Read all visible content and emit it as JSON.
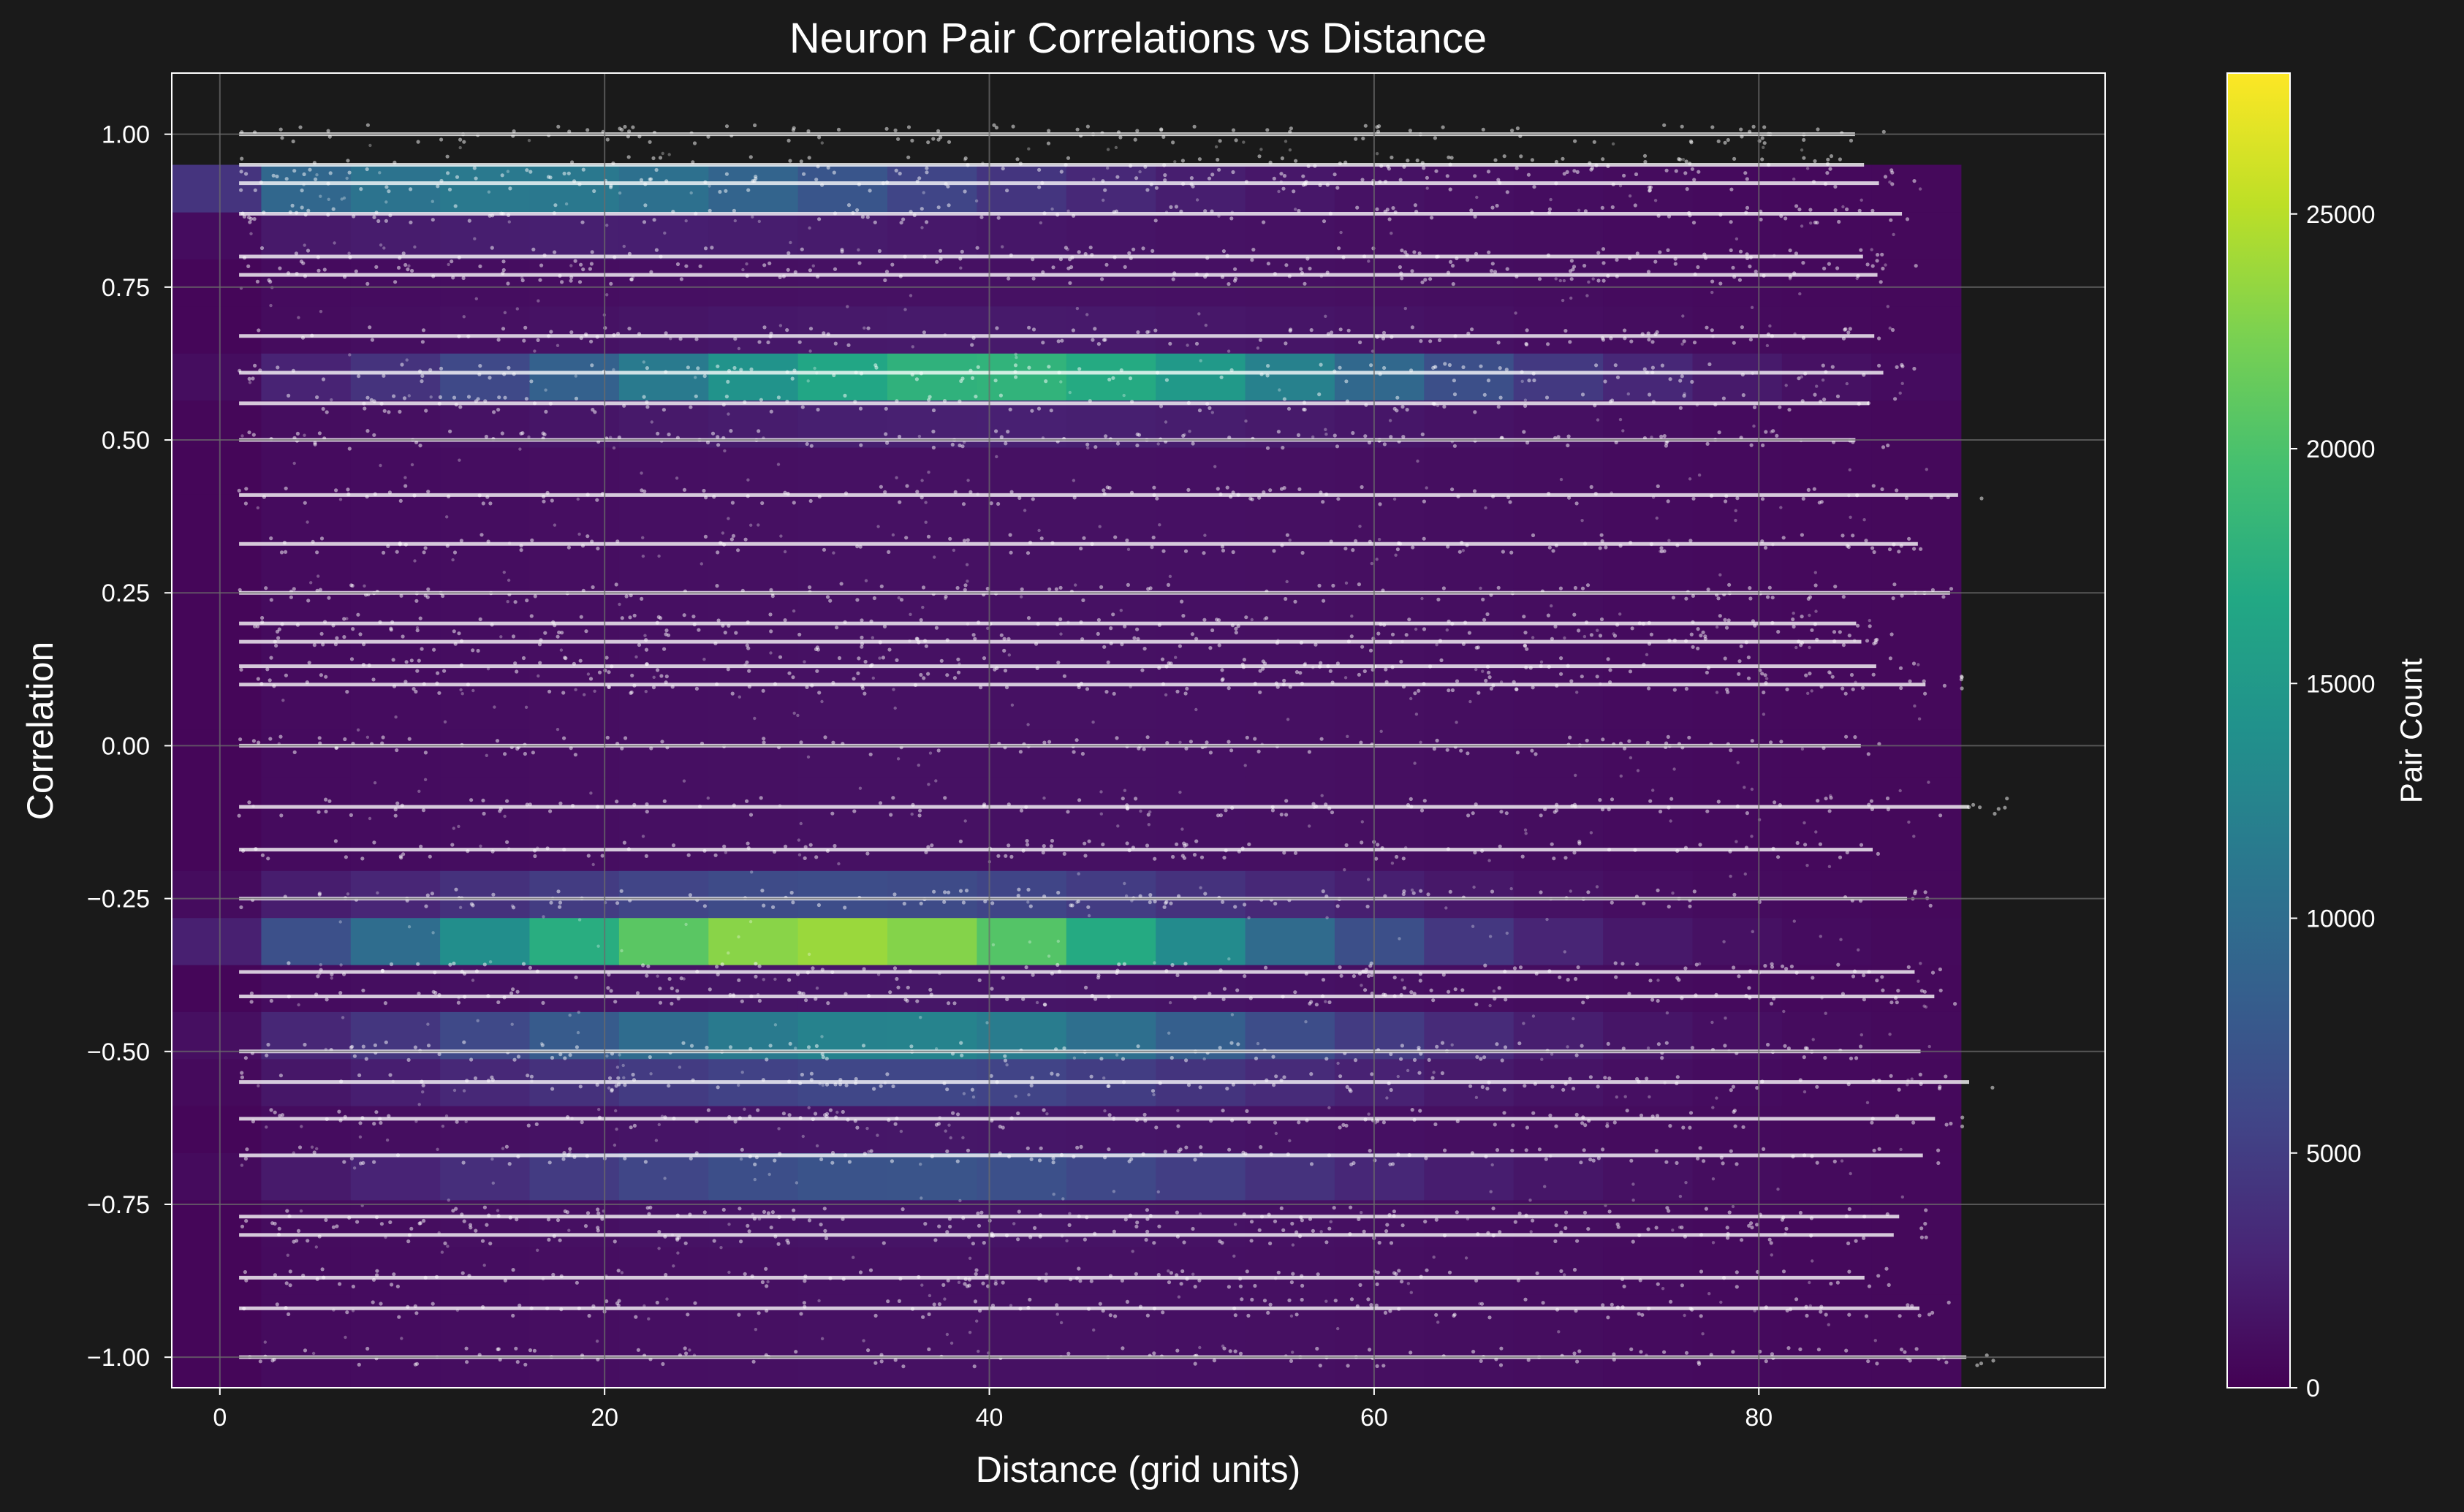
{
  "chart_data": {
    "type": "heatmap",
    "overlay": "scatter",
    "title": "Neuron Pair Correlations vs Distance",
    "xlabel": "Distance (grid units)",
    "ylabel": "Correlation",
    "xlim": [
      -2.5,
      98
    ],
    "ylim": [
      -1.05,
      1.1
    ],
    "x_ticks": [
      0,
      20,
      40,
      60,
      80
    ],
    "x_tick_labels": [
      "0",
      "20",
      "40",
      "60",
      "80"
    ],
    "y_ticks": [
      1.0,
      0.75,
      0.5,
      0.25,
      0.0,
      -0.25,
      -0.5,
      -0.75,
      -1.0
    ],
    "y_tick_labels": [
      "1.00",
      "0.75",
      "0.50",
      "0.25",
      "0.00",
      "−0.25",
      "−0.50",
      "−0.75",
      "−1.00"
    ],
    "grid": true,
    "colormap": "viridis",
    "colorbar": {
      "label": "Pair Count",
      "min": 0,
      "max": 28000,
      "ticks": [
        0,
        5000,
        10000,
        15000,
        20000,
        25000
      ],
      "tick_labels": [
        "0",
        "5000",
        "10000",
        "15000",
        "20000",
        "25000"
      ]
    },
    "heatmap_bins": {
      "x_range": [
        -2.5,
        90.5
      ],
      "y_range": [
        -1.05,
        0.95
      ],
      "peaks": [
        {
          "x": 32,
          "y": -0.3,
          "value": 27000
        },
        {
          "x": 40,
          "y": 0.6,
          "value": 17000
        },
        {
          "x": 35,
          "y": -0.5,
          "value": 16000
        },
        {
          "x": 15,
          "y": 0.9,
          "value": 11000
        },
        {
          "x": 35,
          "y": -0.7,
          "value": 6000
        }
      ]
    },
    "scatter_correlation_levels": [
      1.0,
      0.95,
      0.92,
      0.87,
      0.8,
      0.77,
      0.67,
      0.61,
      0.56,
      0.5,
      0.41,
      0.33,
      0.25,
      0.2,
      0.17,
      0.13,
      0.1,
      0.0,
      -0.1,
      -0.17,
      -0.25,
      -0.37,
      -0.41,
      -0.5,
      -0.55,
      -0.61,
      -0.67,
      -0.77,
      -0.8,
      -0.87,
      -0.92,
      -1.0
    ],
    "scatter_distance_range": [
      1,
      93
    ]
  },
  "colors": {
    "background": "#1a1a1a",
    "grid": "#6b6b6b",
    "scatter": "#ffffff",
    "axes": "#ffffff"
  }
}
